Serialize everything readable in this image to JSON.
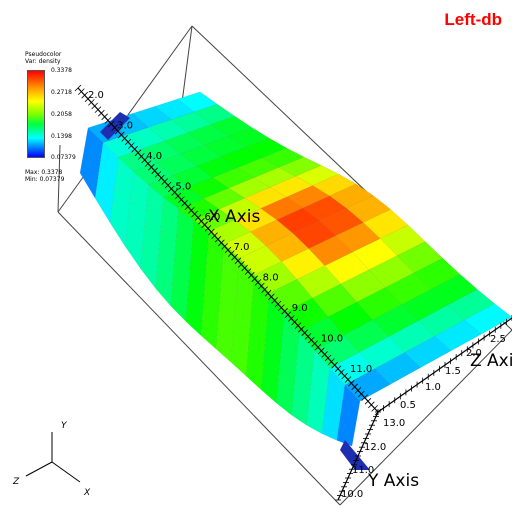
{
  "database_name": "Left-db",
  "legend": {
    "plot_type": "Pseudocolor",
    "var_label": "Var: density",
    "tick_labels": [
      "0.3378",
      "0.2718",
      "0.2058",
      "0.1398",
      "0.07379"
    ],
    "max_label": "Max: 0.3378",
    "min_label": "Min: 0.07379",
    "colors": {
      "high": "#ff0000",
      "mid": "#80ff00",
      "low": "#0000ff"
    }
  },
  "axes": {
    "x_title": "X Axis",
    "y_title": "Y Axis",
    "z_title": "Z Axis",
    "x_ticks": [
      "2.0",
      "3.0",
      "4.0",
      "5.0",
      "6.0",
      "7.0",
      "8.0",
      "9.0",
      "10.0",
      "11.0"
    ],
    "y_ticks": [
      "10.0",
      "11.0",
      "12.0",
      "13.0"
    ],
    "z_ticks": [
      "0.5",
      "1.0",
      "1.5",
      "2.0",
      "2.5"
    ]
  },
  "triad": {
    "x": "X",
    "y": "Y",
    "z": "Z"
  },
  "chart_data": {
    "type": "heatmap",
    "title": "",
    "variable": "density",
    "x_range": [
      2.0,
      11.0
    ],
    "y_range": [
      10.0,
      13.0
    ],
    "z_range": [
      0.5,
      2.5
    ],
    "value_range": [
      0.07379,
      0.3378
    ],
    "grid": false,
    "legend_position": "top-left"
  }
}
